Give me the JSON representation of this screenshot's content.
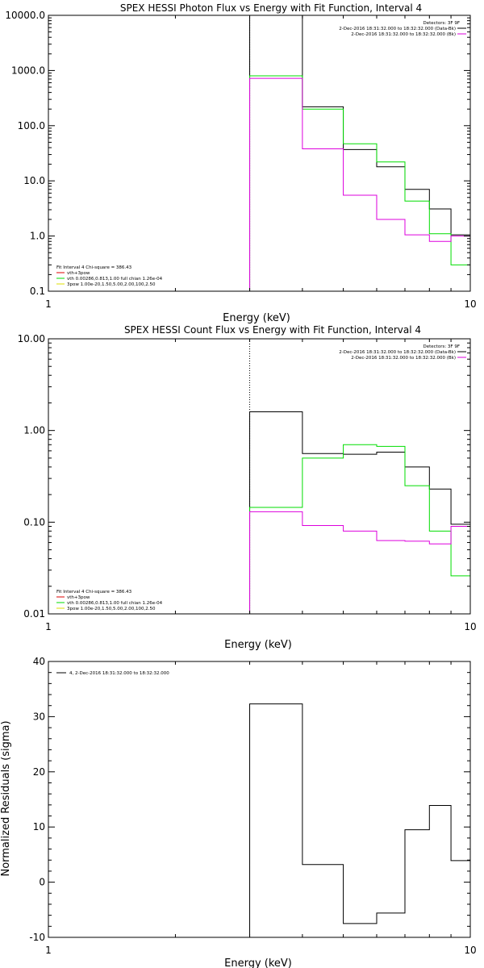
{
  "chart_data": [
    {
      "type": "line",
      "step": true,
      "title": "SPEX HESSI Photon Flux vs Energy with Fit Function, Interval 4",
      "xlabel": "Energy (keV)",
      "ylabel": "",
      "xscale": "log",
      "yscale": "log",
      "xlim": [
        1,
        10
      ],
      "ylim": [
        0.1,
        10000
      ],
      "x_ticks": [
        "1",
        "10"
      ],
      "y_ticks": [
        "0.1",
        "1.0",
        "10.0",
        "100.0",
        "1000.0",
        "10000.0"
      ],
      "vertical_marker_x": 3.0,
      "bin_edges": [
        3.0,
        4.0,
        5.0,
        6.0,
        7.0,
        8.0,
        9.0,
        10.0
      ],
      "series": [
        {
          "name": "",
          "color": "#000000",
          "values": [
            10000,
            220,
            37,
            18,
            7,
            3.1,
            1.05
          ]
        },
        {
          "name": "vth+3pow",
          "color": "#00dd00",
          "values": [
            800,
            200,
            47,
            22,
            4.3,
            1.1,
            0.3
          ]
        },
        {
          "name": "",
          "color": "#dd00dd",
          "values": [
            720,
            38,
            5.5,
            2.0,
            1.05,
            0.8,
            1.0
          ]
        }
      ],
      "legend_top": {
        "placement": "top-right",
        "header": "Detectors: 3F 9F",
        "lines": [
          {
            "text": "2-Dec-2016 18:31:32.000 to 18:32:32.000 (Data-Bk)",
            "color": "#000000"
          },
          {
            "text": "2-Dec-2016 18:31:32.000 to 18:32:32.000 (Bk)",
            "color": "#dd00dd"
          }
        ]
      },
      "legend_bottom": {
        "placement": "bottom-left",
        "header": "Fit Interval 4   Chi-square = 386.43",
        "lines": [
          {
            "text": "vth+3pow",
            "color": "#dd0000"
          },
          {
            "text": "vth 0.00286,0.813,1.00   full chian 1.26e-04",
            "color": "#00dd00"
          },
          {
            "text": "3pow 1.00e-20,1.50,5.00,2.00,100,2.50",
            "color": "#dddd00"
          }
        ]
      }
    },
    {
      "type": "line",
      "step": true,
      "title": "SPEX HESSI Count Flux vs Energy with Fit Function, Interval 4",
      "xlabel": "Energy (keV)",
      "ylabel": "",
      "xscale": "log",
      "yscale": "log",
      "xlim": [
        1,
        10
      ],
      "ylim": [
        0.01,
        10
      ],
      "x_ticks": [
        "1",
        "10"
      ],
      "y_ticks": [
        "0.01",
        "0.10",
        "1.00",
        "10.00"
      ],
      "vertical_marker_x": 3.0,
      "bin_edges": [
        3.0,
        4.0,
        5.0,
        6.0,
        7.0,
        8.0,
        9.0,
        10.0
      ],
      "series": [
        {
          "name": "",
          "color": "#000000",
          "values": [
            1.6,
            0.56,
            0.55,
            0.58,
            0.4,
            0.23,
            0.095
          ]
        },
        {
          "name": "vth+3pow",
          "color": "#00dd00",
          "values": [
            0.145,
            0.5,
            0.7,
            0.67,
            0.25,
            0.08,
            0.026
          ]
        },
        {
          "name": "",
          "color": "#dd00dd",
          "values": [
            0.13,
            0.092,
            0.08,
            0.063,
            0.062,
            0.058,
            0.09
          ]
        }
      ],
      "legend_top": {
        "placement": "top-right",
        "header": "Detectors: 3F 9F",
        "lines": [
          {
            "text": "2-Dec-2016 18:31:32.000 to 18:32:32.000 (Data-Bk)",
            "color": "#000000"
          },
          {
            "text": "2-Dec-2016 18:31:32.000 to 18:32:32.000 (Bk)",
            "color": "#dd00dd"
          }
        ]
      },
      "legend_bottom": {
        "placement": "bottom-left",
        "header": "Fit Interval 4   Chi-square = 386.43",
        "lines": [
          {
            "text": "vth+3pow",
            "color": "#dd0000"
          },
          {
            "text": "vth 0.00286,0.813,1.00   full chian 1.26e-04",
            "color": "#00dd00"
          },
          {
            "text": "3pow 1.00e-20,1.50,5.00,2.00,100,2.50",
            "color": "#dddd00"
          }
        ]
      }
    },
    {
      "type": "line",
      "step": true,
      "title": "",
      "xlabel": "Energy (keV)",
      "ylabel": "Normalized Residuals (sigma)",
      "xscale": "log",
      "yscale": "linear",
      "xlim": [
        1,
        10
      ],
      "ylim": [
        -10,
        40
      ],
      "x_ticks": [
        "1",
        "10"
      ],
      "y_ticks": [
        "-10",
        "0",
        "10",
        "20",
        "30",
        "40"
      ],
      "bin_edges": [
        3.0,
        4.0,
        5.0,
        6.0,
        7.0,
        8.0,
        9.0,
        10.0
      ],
      "series": [
        {
          "name": "4, 2-Dec-2016 18:31:32.000 to 18:32:32.000",
          "color": "#000000",
          "values": [
            32.3,
            3.2,
            -7.5,
            -5.6,
            9.5,
            13.9,
            3.9
          ]
        }
      ],
      "legend_top": {
        "placement": "top-left",
        "header": "",
        "lines": [
          {
            "text": "4, 2-Dec-2016 18:31:32.000 to 18:32:32.000",
            "color": "#000000"
          }
        ]
      }
    }
  ]
}
